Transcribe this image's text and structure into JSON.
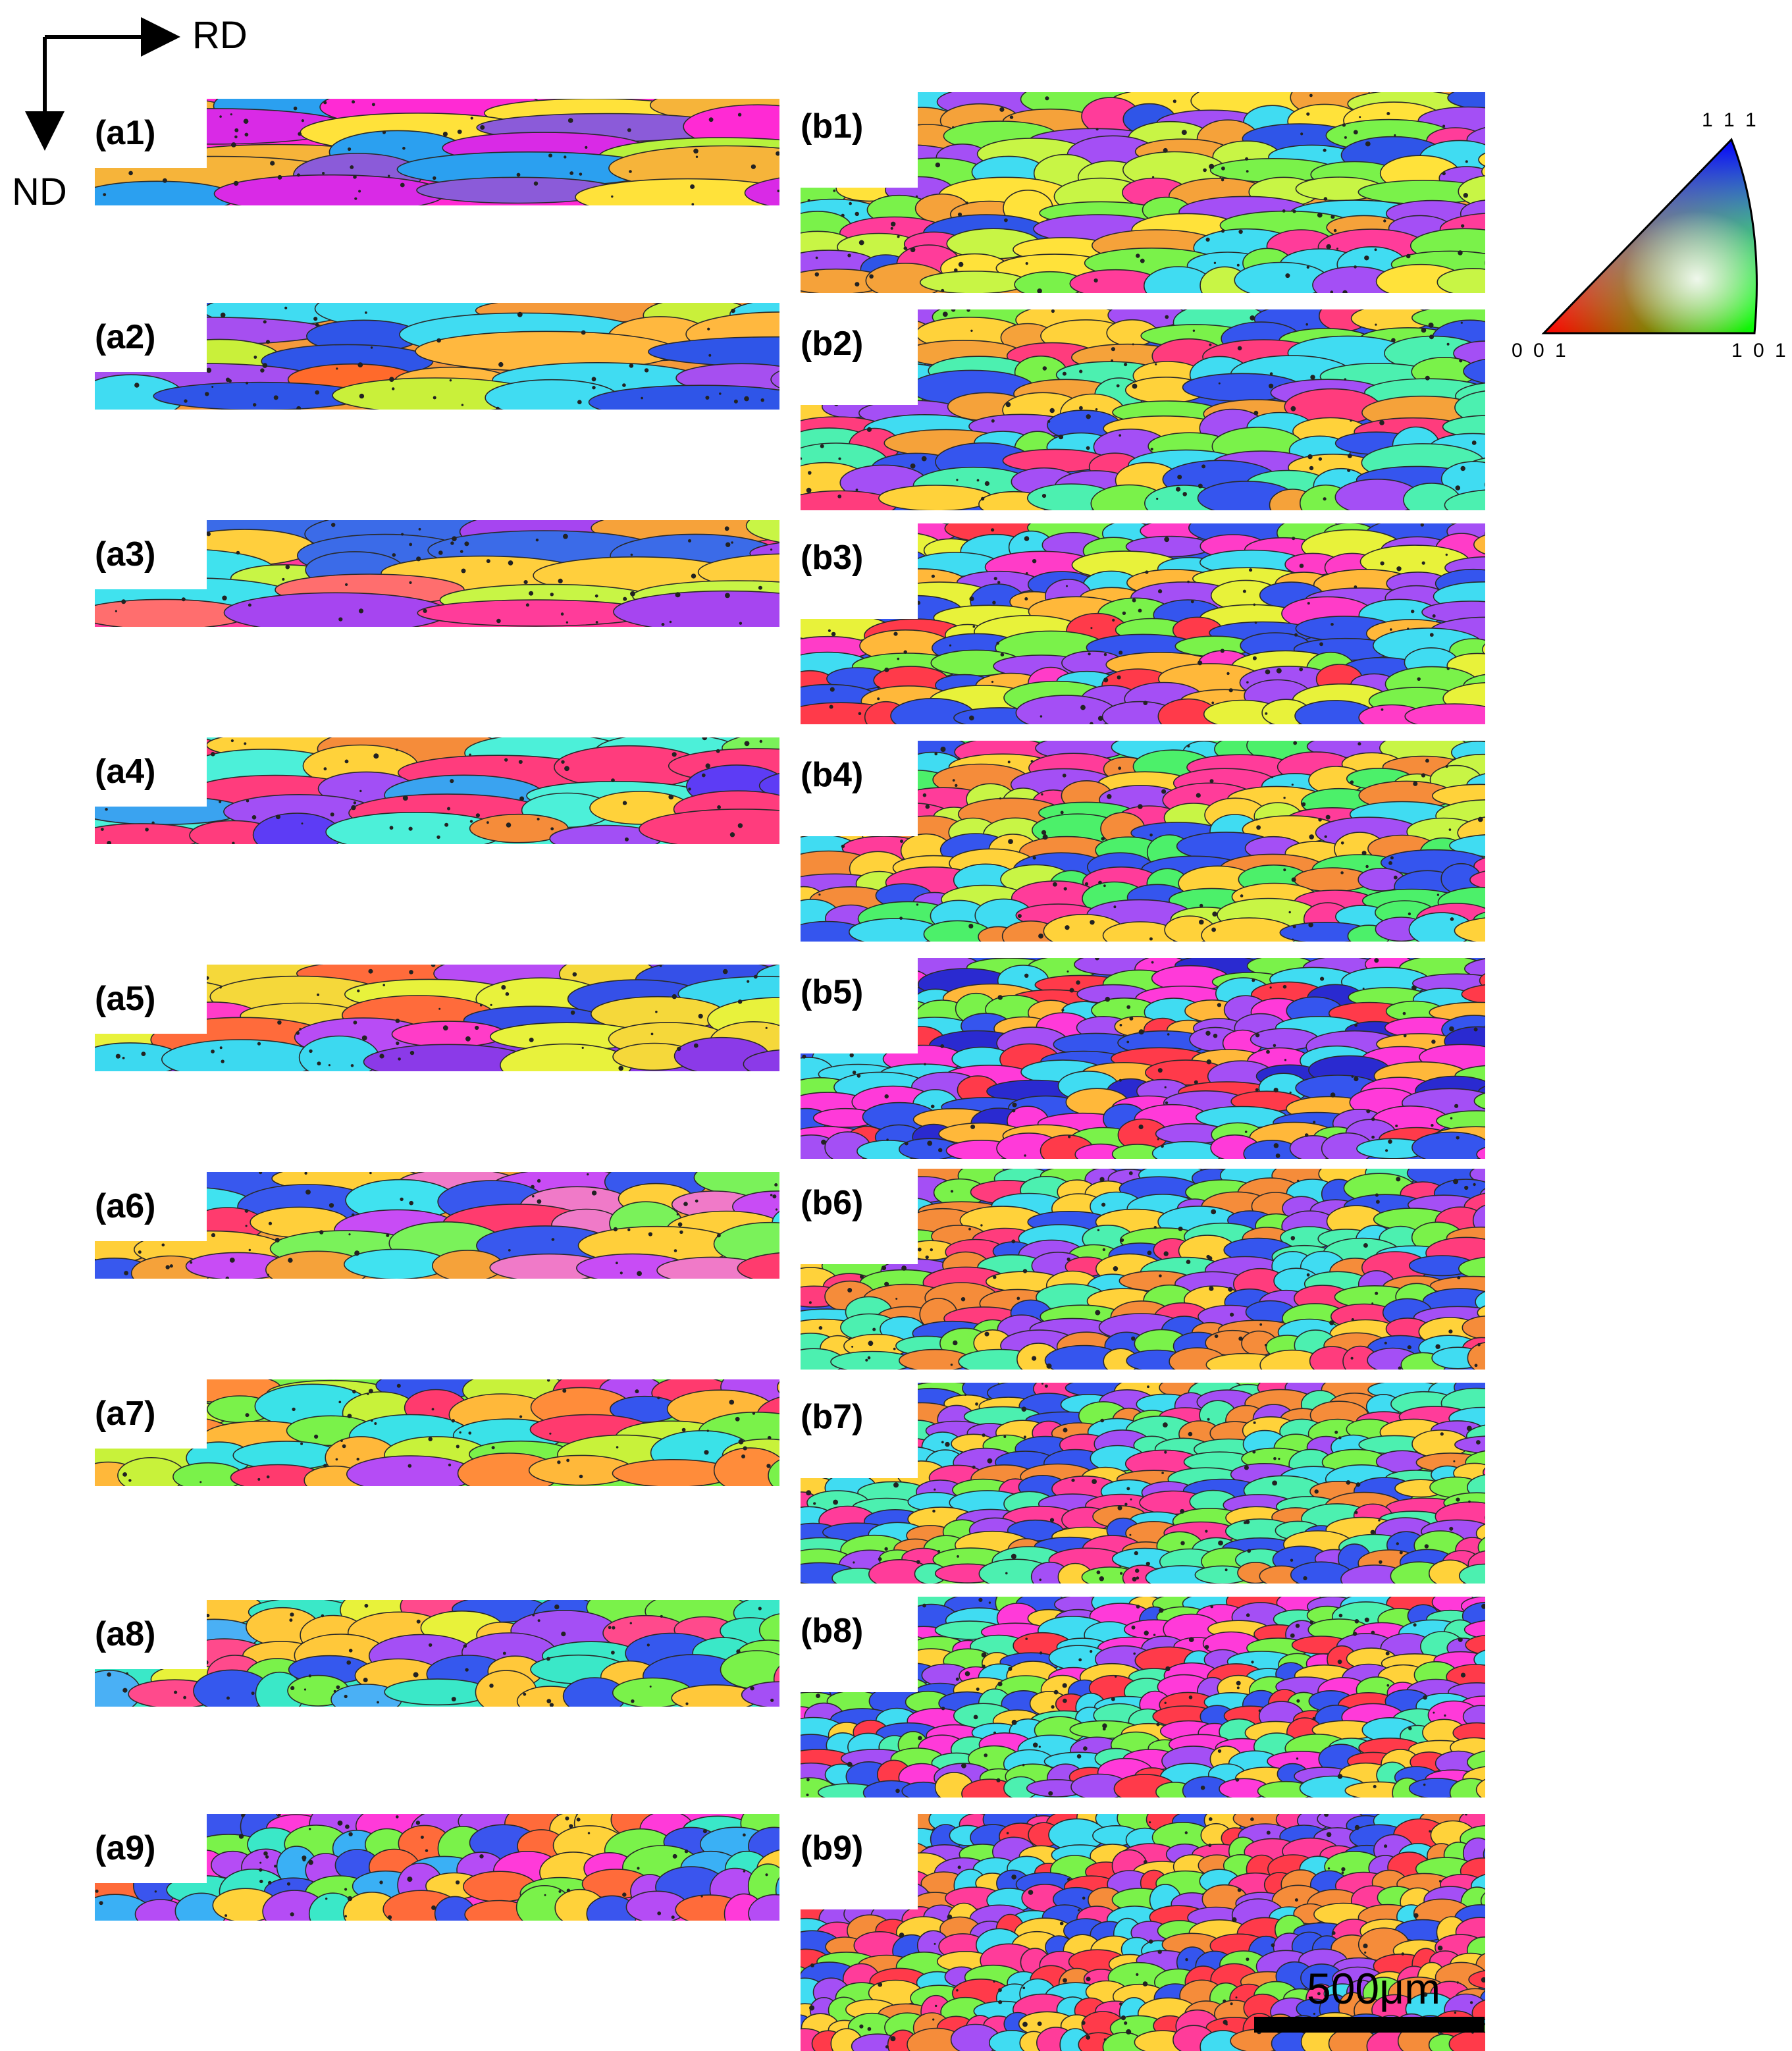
{
  "axes": {
    "rd_label": "RD",
    "nd_label": "ND"
  },
  "panels_a": [
    {
      "id": "a1",
      "label": "(a1)",
      "palette": [
        "#ff2ad4",
        "#d92ae6",
        "#b7f23d",
        "#f6b43a",
        "#ffe23a",
        "#8b5bd9",
        "#f5a0c8",
        "#2ba0f0"
      ]
    },
    {
      "id": "a2",
      "label": "(a2)",
      "palette": [
        "#f59a3b",
        "#ffb83f",
        "#c9f03a",
        "#40dcf2",
        "#2f55e8",
        "#a64ff0",
        "#ff6a2b",
        "#e8e840"
      ]
    },
    {
      "id": "a3",
      "label": "(a3)",
      "palette": [
        "#ff3c9a",
        "#f6a23a",
        "#ffcf3d",
        "#40e2ee",
        "#a645f0",
        "#c8f545",
        "#ff6e6e",
        "#3b6be8"
      ]
    },
    {
      "id": "a4",
      "label": "(a4)",
      "palette": [
        "#4cf0d9",
        "#3aa3f0",
        "#f58c3a",
        "#ffd23a",
        "#a24ff5",
        "#5d3cf5",
        "#ff3c7d",
        "#7af25a"
      ]
    },
    {
      "id": "a5",
      "label": "(a5)",
      "palette": [
        "#8b3ae8",
        "#3550e8",
        "#ff3cc8",
        "#b84cf5",
        "#e8f23c",
        "#3cd9f0",
        "#ff6b3b",
        "#f5d83a"
      ]
    },
    {
      "id": "a6",
      "label": "(a6)",
      "palette": [
        "#f5a23a",
        "#ffcf3a",
        "#40e2f0",
        "#3858ee",
        "#ff3b6e",
        "#7af25a",
        "#c84cf5",
        "#f07ac8"
      ]
    },
    {
      "id": "a7",
      "label": "(a7)",
      "palette": [
        "#7af24a",
        "#ffb83a",
        "#3ae2e8",
        "#3555ee",
        "#ff3a6e",
        "#c8f23a",
        "#b54cf5",
        "#ff8c3a"
      ]
    },
    {
      "id": "a8",
      "label": "(a8)",
      "palette": [
        "#3ae8c8",
        "#4ab0f5",
        "#7af24a",
        "#ffc83a",
        "#ff4a8c",
        "#a44ff5",
        "#3558ee",
        "#e8f23a"
      ]
    },
    {
      "id": "a9",
      "label": "(a9)",
      "palette": [
        "#ff3ad9",
        "#3ae8c8",
        "#ffd23a",
        "#3a55ee",
        "#7af24a",
        "#ff6b3a",
        "#b54cf5",
        "#3ab0f5"
      ]
    }
  ],
  "panels_b": [
    {
      "id": "b1",
      "label": "(b1)",
      "palette": [
        "#f5a23a",
        "#40dcf2",
        "#7af24a",
        "#2f55e8",
        "#ff3c9a",
        "#c8f545",
        "#ffe23a",
        "#a44ff5"
      ]
    },
    {
      "id": "b2",
      "label": "(b2)",
      "palette": [
        "#3555ee",
        "#f5a23a",
        "#7af24a",
        "#40dcf2",
        "#ff3c7d",
        "#a44ff5",
        "#ffd23a",
        "#4cf0b0"
      ]
    },
    {
      "id": "b3",
      "label": "(b3)",
      "palette": [
        "#3555ee",
        "#ff3cc8",
        "#7af24a",
        "#ffb83a",
        "#40dcf2",
        "#a44ff5",
        "#ff3a4a",
        "#e8f23a"
      ]
    },
    {
      "id": "b4",
      "label": "(b4)",
      "palette": [
        "#4cf06a",
        "#ff3c9a",
        "#ffd23a",
        "#40dcf2",
        "#f58c3a",
        "#3555ee",
        "#a44ff5",
        "#c8f545"
      ]
    },
    {
      "id": "b5",
      "label": "(b5)",
      "palette": [
        "#3555ee",
        "#ff3ad9",
        "#7af24a",
        "#ffb83a",
        "#40dcf2",
        "#a44ff5",
        "#ff3a4a",
        "#2a2ad0"
      ]
    },
    {
      "id": "b6",
      "label": "(b6)",
      "palette": [
        "#3555ee",
        "#7af24a",
        "#ff3c7d",
        "#ffd23a",
        "#40dcf2",
        "#a44ff5",
        "#f58c3a",
        "#4cf0b0"
      ]
    },
    {
      "id": "b7",
      "label": "(b7)",
      "palette": [
        "#7af24a",
        "#3555ee",
        "#ffd23a",
        "#40dcf2",
        "#ff3c9a",
        "#a44ff5",
        "#f58c3a",
        "#4cf0b0"
      ]
    },
    {
      "id": "b8",
      "label": "(b8)",
      "palette": [
        "#40dcf2",
        "#7af24a",
        "#3555ee",
        "#ff3ad9",
        "#ffd23a",
        "#a44ff5",
        "#ff3a4a",
        "#4cf0b0"
      ]
    },
    {
      "id": "b9",
      "label": "(b9)",
      "palette": [
        "#3555ee",
        "#ff3c9a",
        "#7af24a",
        "#ffd23a",
        "#40dcf2",
        "#a44ff5",
        "#f58c3a",
        "#ff3a4a"
      ]
    }
  ],
  "color_key": {
    "top_label": "1 1 1",
    "left_label": "0 0 1",
    "right_label": "1 0 1"
  },
  "scale_bar": {
    "label": "500μm"
  }
}
